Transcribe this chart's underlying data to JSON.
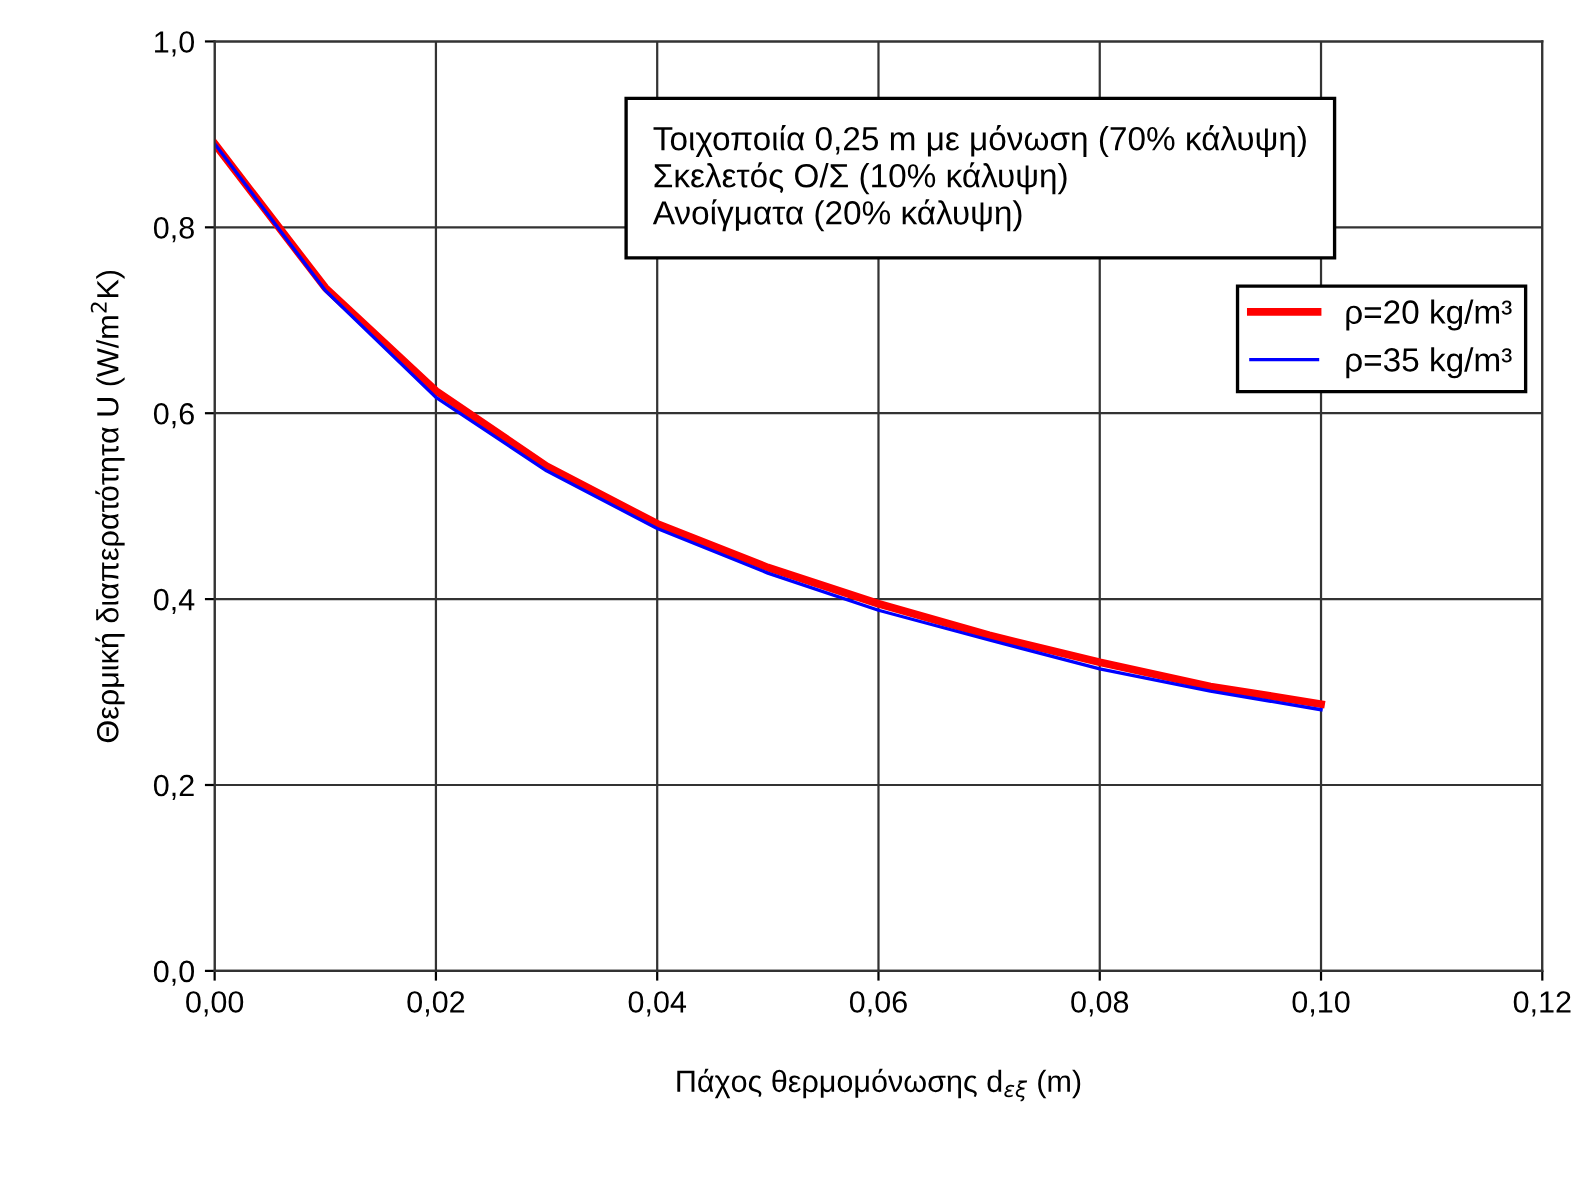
{
  "chart_data": {
    "type": "line",
    "xlabel": "Πάχος θερμομόνωσης d$_{εξ}$ (m)",
    "ylabel": "Θερμική διαπερατότητα U (W/m$^{2}$K)",
    "x": [
      0,
      0.01,
      0.02,
      0.03,
      0.04,
      0.05,
      0.06,
      0.07,
      0.08,
      0.09,
      0.1
    ],
    "series": [
      {
        "name": "ρ=20 kg/m³",
        "color": "#ff0000",
        "values": [
          0.89,
          0.735,
          0.624,
          0.543,
          0.481,
          0.434,
          0.395,
          0.361,
          0.332,
          0.306,
          0.287
        ]
      },
      {
        "name": "ρ=35 kg/m³",
        "color": "#0000ff",
        "values": [
          0.89,
          0.732,
          0.617,
          0.538,
          0.476,
          0.428,
          0.388,
          0.356,
          0.325,
          0.301,
          0.281
        ]
      }
    ],
    "xlim": [
      0,
      0.12
    ],
    "ylim": [
      0,
      1
    ],
    "xticks": [
      {
        "value": 0,
        "label": "0,00"
      },
      {
        "value": 0.02,
        "label": "0,02"
      },
      {
        "value": 0.04,
        "label": "0,04"
      },
      {
        "value": 0.06,
        "label": "0,06"
      },
      {
        "value": 0.08,
        "label": "0,08"
      },
      {
        "value": 0.1,
        "label": "0,10"
      },
      {
        "value": 0.12,
        "label": "0,12"
      }
    ],
    "yticks": [
      {
        "value": 0,
        "label": "0,0"
      },
      {
        "value": 0.2,
        "label": "0,2"
      },
      {
        "value": 0.4,
        "label": "0,4"
      },
      {
        "value": 0.6,
        "label": "0,6"
      },
      {
        "value": 0.8,
        "label": "0,8"
      },
      {
        "value": 1,
        "label": "1,0"
      }
    ],
    "annotations": [
      "Τοιχοποιία 0,25 m με μόνωση (70% κάλυψη)",
      "Σκελετός Ο/Σ (10% κάλυψη)",
      "Ανοίγματα (20% κάλυψη)"
    ],
    "grid": true,
    "legend": "right",
    "marker": "none",
    "line_style": "solid"
  }
}
